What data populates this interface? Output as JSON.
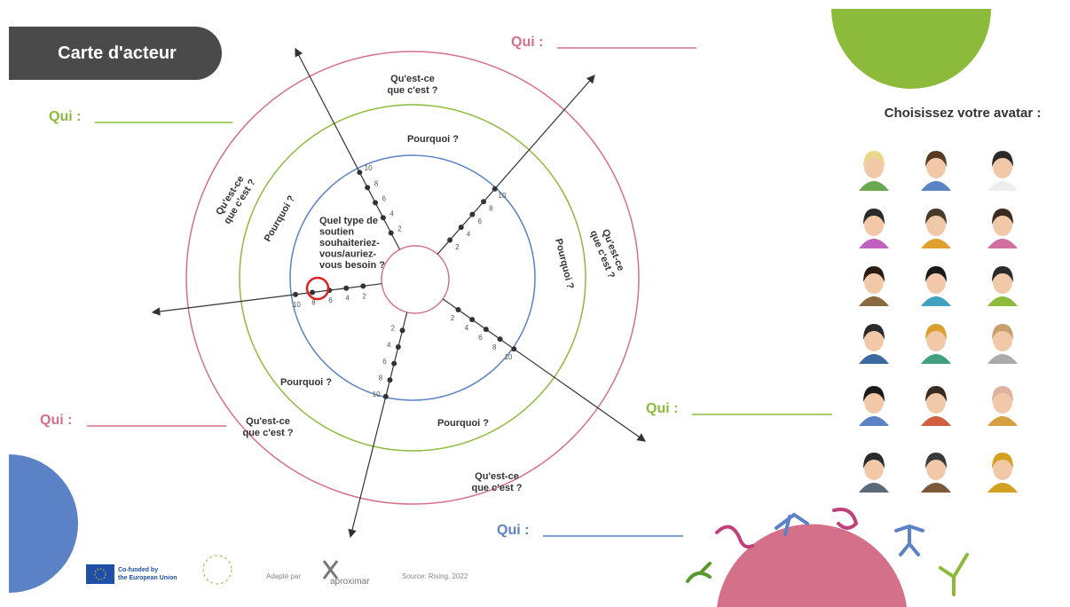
{
  "header": {
    "title": "Carte d'acteur"
  },
  "who": [
    "Qui :",
    "Qui :",
    "Qui :",
    "Qui :",
    "Qui :"
  ],
  "what_is_it": [
    [
      "Qu'est-ce",
      "que c'est ?"
    ],
    [
      "Qu'est-ce",
      "que c'est ?"
    ],
    [
      "Qu'est-ce",
      "que c'est ?"
    ],
    [
      "Qu'est-ce",
      "que c'est ?"
    ],
    [
      "Qu'est-ce",
      "que c'est ?"
    ]
  ],
  "why": [
    "Pourquoi ?",
    "Pourquoi ?",
    "Pourquoi ?",
    "Pourquoi ?",
    "Pourquoi ?"
  ],
  "center_question": [
    "Quel type de",
    "soutien",
    "souhaiteriez-",
    "vous/auriez-",
    "vous besoin ?"
  ],
  "axes": [
    {
      "ticks": [
        2,
        4,
        6,
        8,
        10
      ]
    },
    {
      "ticks": [
        2,
        4,
        6,
        8,
        10
      ]
    },
    {
      "ticks": [
        2,
        4,
        6,
        8,
        10
      ]
    },
    {
      "ticks": [
        2,
        4,
        6,
        8,
        10
      ]
    },
    {
      "ticks": [
        2,
        4,
        6,
        8,
        10
      ]
    }
  ],
  "avatar_panel": {
    "title": "Choisissez votre avatar :"
  },
  "footer": {
    "funding": [
      "Co-funded by",
      "the European Union"
    ],
    "adapted_by": "Adapté par",
    "partner": "aproximar",
    "source": "Source: Rising, 2022"
  }
}
